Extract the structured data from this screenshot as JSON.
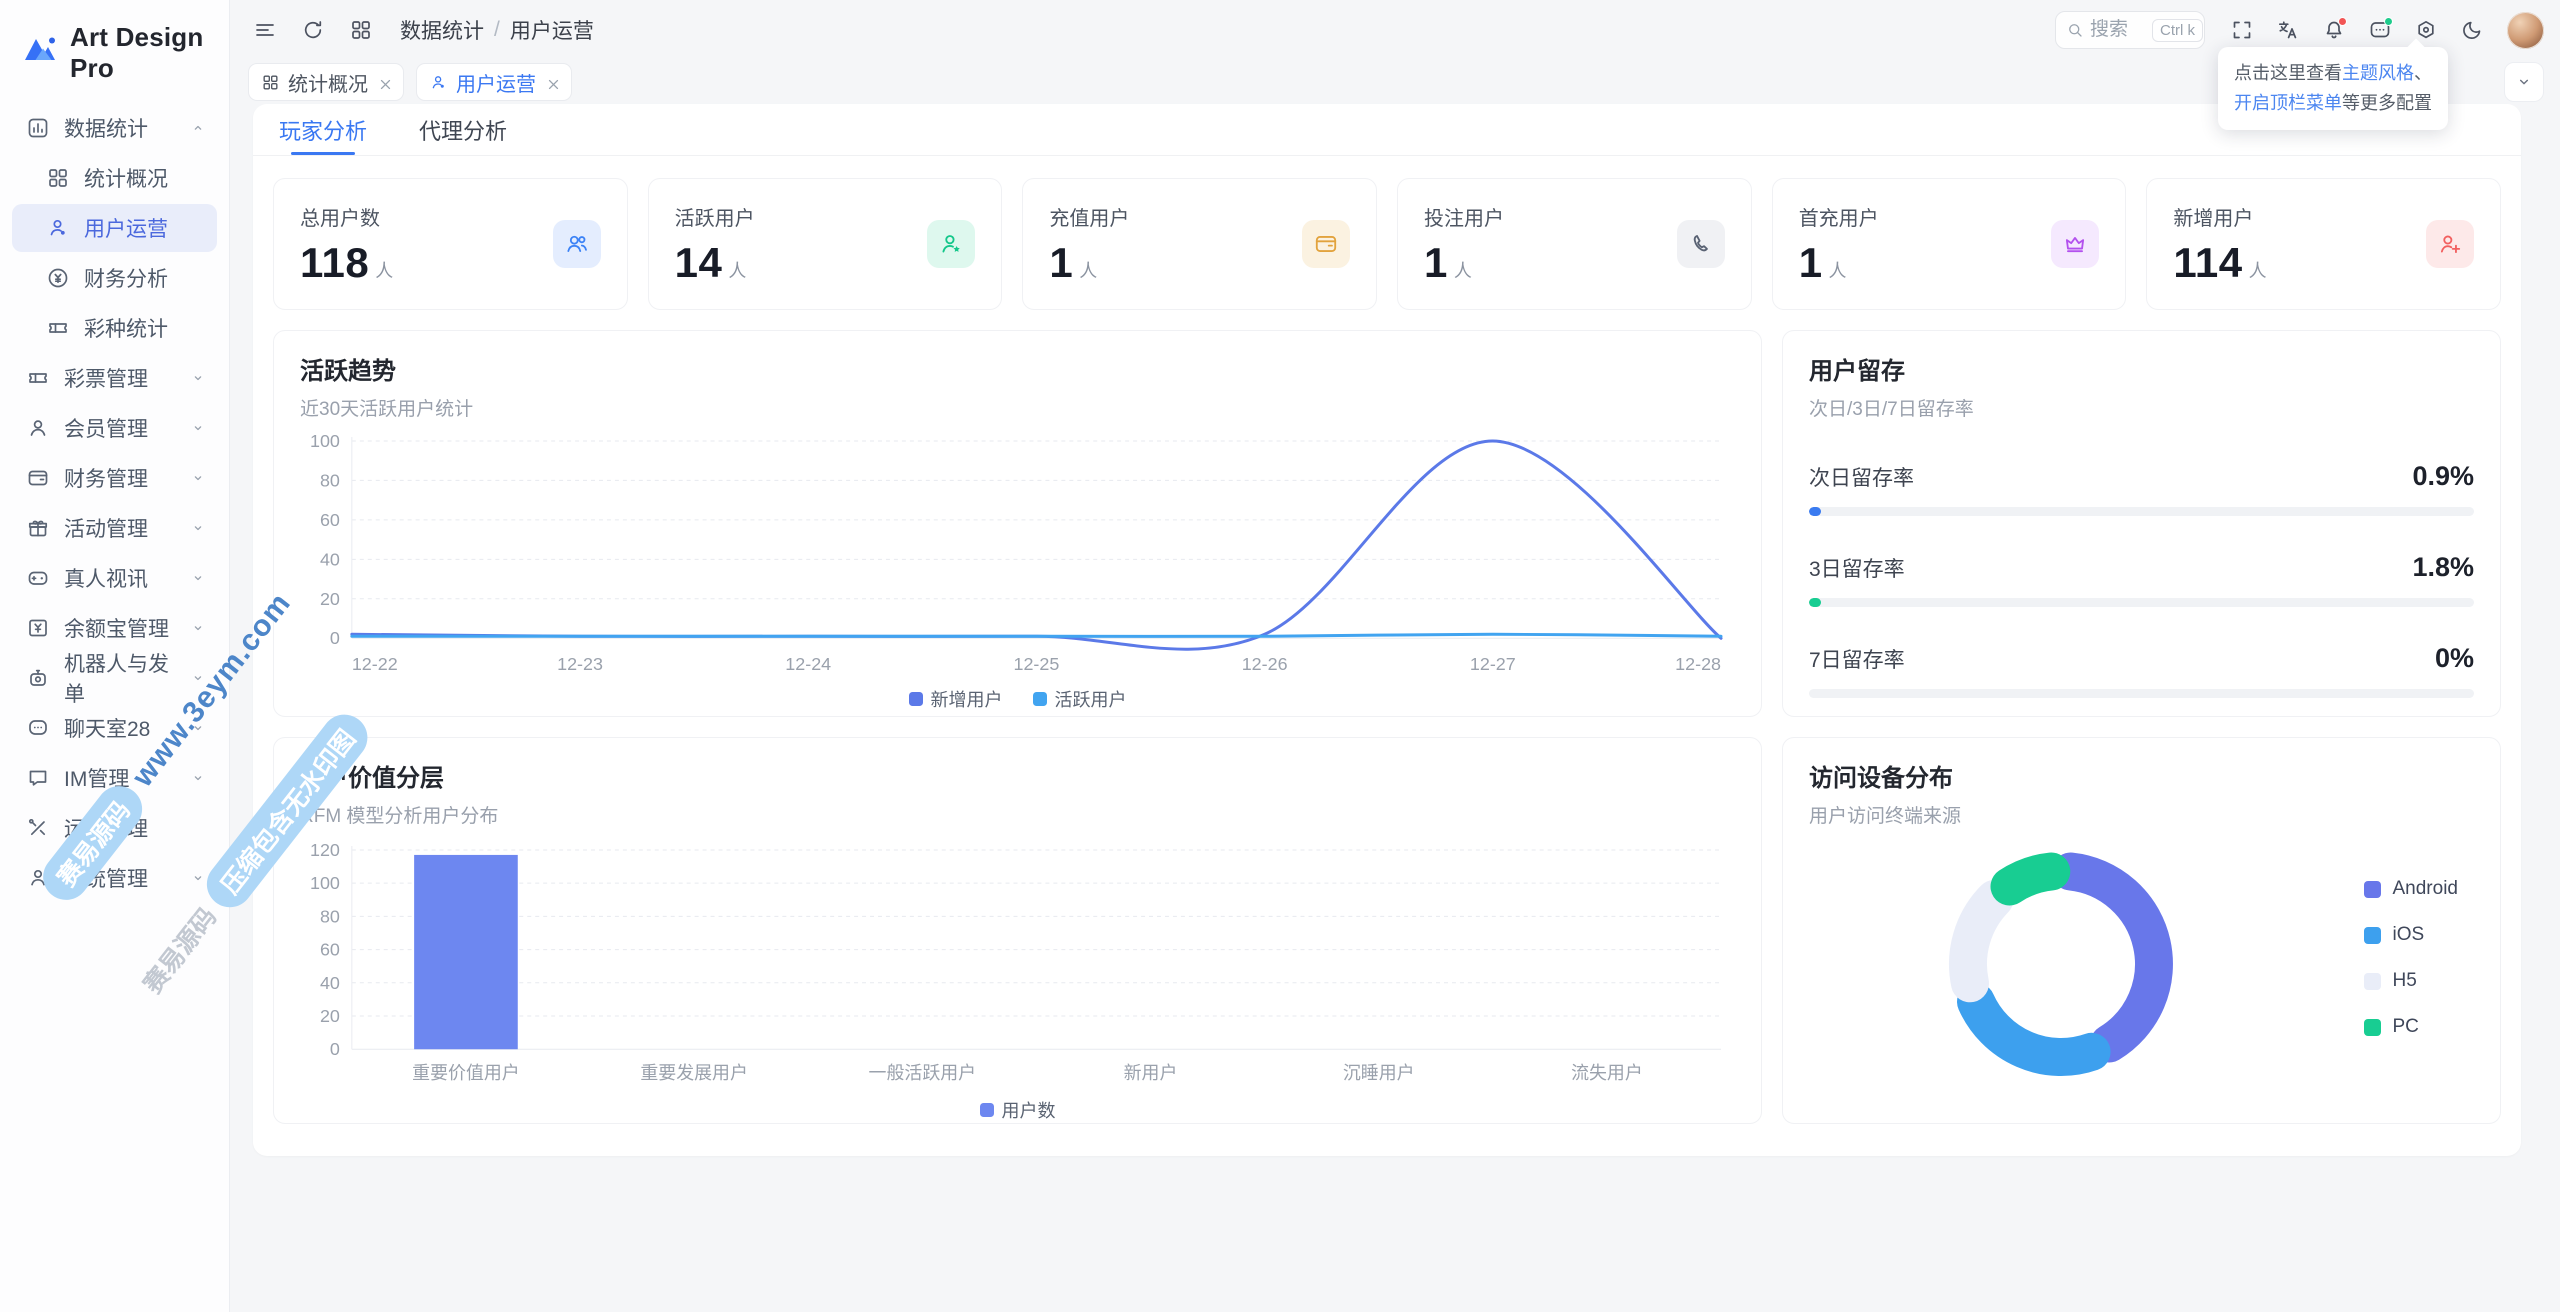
{
  "app": {
    "name": "Art Design Pro"
  },
  "sidebar": {
    "sections": [
      {
        "id": "data-stats",
        "label": "数据统计",
        "icon": "chart",
        "expanded": true,
        "children": [
          {
            "id": "stats-overview",
            "label": "统计概况",
            "icon": "grid"
          },
          {
            "id": "user-operation",
            "label": "用户运营",
            "icon": "user",
            "active": true
          },
          {
            "id": "finance-analysis",
            "label": "财务分析",
            "icon": "finance"
          },
          {
            "id": "lottery-stats",
            "label": "彩种统计",
            "icon": "ticket"
          }
        ]
      },
      {
        "id": "lottery-mgmt",
        "label": "彩票管理",
        "icon": "ticket",
        "chevron": true
      },
      {
        "id": "member-mgmt",
        "label": "会员管理",
        "icon": "member",
        "chevron": true
      },
      {
        "id": "finance-mgmt",
        "label": "财务管理",
        "icon": "wallet",
        "chevron": true
      },
      {
        "id": "activity-mgmt",
        "label": "活动管理",
        "icon": "gift",
        "chevron": true
      },
      {
        "id": "live-video",
        "label": "真人视讯",
        "icon": "gamepad",
        "chevron": true
      },
      {
        "id": "yuebao-mgmt",
        "label": "余额宝管理",
        "icon": "money",
        "chevron": true
      },
      {
        "id": "robot-orders",
        "label": "机器人与发单",
        "icon": "robot",
        "chevron": true
      },
      {
        "id": "chatroom-28",
        "label": "聊天室28",
        "icon": "chat",
        "chevron": true
      },
      {
        "id": "im-mgmt",
        "label": "IM管理",
        "icon": "im",
        "chevron": true
      },
      {
        "id": "ops-mgmt",
        "label": "运维管理",
        "icon": "tools",
        "chevron": false
      },
      {
        "id": "system-mgmt",
        "label": "系统管理",
        "icon": "system",
        "chevron": true
      }
    ]
  },
  "header": {
    "breadcrumb": [
      "数据统计",
      "用户运营"
    ],
    "breadcrumb_separator": "/",
    "search": {
      "placeholder": "搜索",
      "shortcut": "Ctrl k"
    }
  },
  "tabs_bar": [
    {
      "id": "stats-overview",
      "label": "统计概况",
      "icon": "grid",
      "active": false
    },
    {
      "id": "user-operation",
      "label": "用户运营",
      "icon": "user",
      "active": true
    }
  ],
  "page_tabs": [
    {
      "id": "player-analysis",
      "label": "玩家分析",
      "active": true
    },
    {
      "id": "agent-analysis",
      "label": "代理分析",
      "active": false
    }
  ],
  "stat_cards": [
    {
      "id": "total-users",
      "label": "总用户数",
      "value": "118",
      "unit": "人",
      "icon": "users",
      "color": "#3b82f6",
      "bg": "#e4edfe"
    },
    {
      "id": "active-users",
      "label": "活跃用户",
      "value": "14",
      "unit": "人",
      "icon": "user-star",
      "color": "#14c78a",
      "bg": "#def8ee"
    },
    {
      "id": "recharge-users",
      "label": "充值用户",
      "value": "1",
      "unit": "人",
      "icon": "wallet",
      "color": "#e2a33d",
      "bg": "#fbf2e1"
    },
    {
      "id": "betting-users",
      "label": "投注用户",
      "value": "1",
      "unit": "人",
      "icon": "phone",
      "color": "#596273",
      "bg": "#f0f1f4"
    },
    {
      "id": "first-recharge-users",
      "label": "首充用户",
      "value": "1",
      "unit": "人",
      "icon": "crown",
      "color": "#b351ee",
      "bg": "#f5e9fe"
    },
    {
      "id": "new-users",
      "label": "新增用户",
      "value": "114",
      "unit": "人",
      "icon": "user-plus",
      "color": "#f25f5f",
      "bg": "#fde9e9"
    }
  ],
  "chart_data": [
    {
      "type": "line",
      "title": "活跃趋势",
      "subtitle": "近30天活跃用户统计",
      "x": [
        "12-22",
        "12-23",
        "12-24",
        "12-25",
        "12-26",
        "12-27",
        "12-28"
      ],
      "series": [
        {
          "name": "新增用户",
          "color": "#5b79e8",
          "values": [
            2,
            1,
            1,
            1,
            2,
            100,
            0
          ]
        },
        {
          "name": "活跃用户",
          "color": "#41a4f0",
          "values": [
            1,
            1,
            1,
            1,
            1,
            2,
            1
          ]
        }
      ],
      "ylim": [
        0,
        100
      ],
      "yticks": [
        0,
        20,
        40,
        60,
        80,
        100
      ],
      "grid": true,
      "legend_position": "bottom"
    },
    {
      "type": "bar",
      "title": "用户价值分层",
      "subtitle": "RFM 模型分析用户分布",
      "categories": [
        "重要价值用户",
        "重要发展用户",
        "一般活跃用户",
        "新用户",
        "沉睡用户",
        "流失用户"
      ],
      "series": [
        {
          "name": "用户数",
          "color": "#6d87f0",
          "values": [
            117,
            0,
            0,
            0,
            0,
            0
          ]
        }
      ],
      "ylim": [
        0,
        120
      ],
      "yticks": [
        0,
        20,
        40,
        60,
        80,
        100,
        120
      ],
      "grid": true,
      "legend_position": "bottom"
    },
    {
      "type": "pie",
      "title": "访问设备分布",
      "subtitle": "用户访问终端来源",
      "donut": true,
      "slices": [
        {
          "label": "Android",
          "value": 43,
          "color": "#6877ea"
        },
        {
          "label": "iOS",
          "value": 27,
          "color": "#3da0ee"
        },
        {
          "label": "H5",
          "value": 19,
          "color": "#e9edf8"
        },
        {
          "label": "PC",
          "value": 11,
          "color": "#18cd92"
        }
      ],
      "legend_position": "right"
    }
  ],
  "retention": {
    "title": "用户留存",
    "subtitle": "次日/3日/7日留存率",
    "rows": [
      {
        "id": "day1",
        "label": "次日留存率",
        "value": "0.9%",
        "pct": 0.9,
        "color": "#3a7bf0"
      },
      {
        "id": "day3",
        "label": "3日留存率",
        "value": "1.8%",
        "pct": 1.8,
        "color": "#18cd92"
      },
      {
        "id": "day7",
        "label": "7日留存率",
        "value": "0%",
        "pct": 0,
        "color": "#3a7bf0"
      }
    ]
  },
  "tooltip": {
    "t1": "点击这里查看",
    "link1": "主题风格",
    "t2": "、",
    "link2": "开启顶栏菜单",
    "t3": "等更多配置"
  },
  "watermark": {
    "r1_pill": "赛易源码",
    "r1_text": "www.3eym.com",
    "r2_text": "赛易源码",
    "r2_pill": "压缩包含无水印图"
  }
}
